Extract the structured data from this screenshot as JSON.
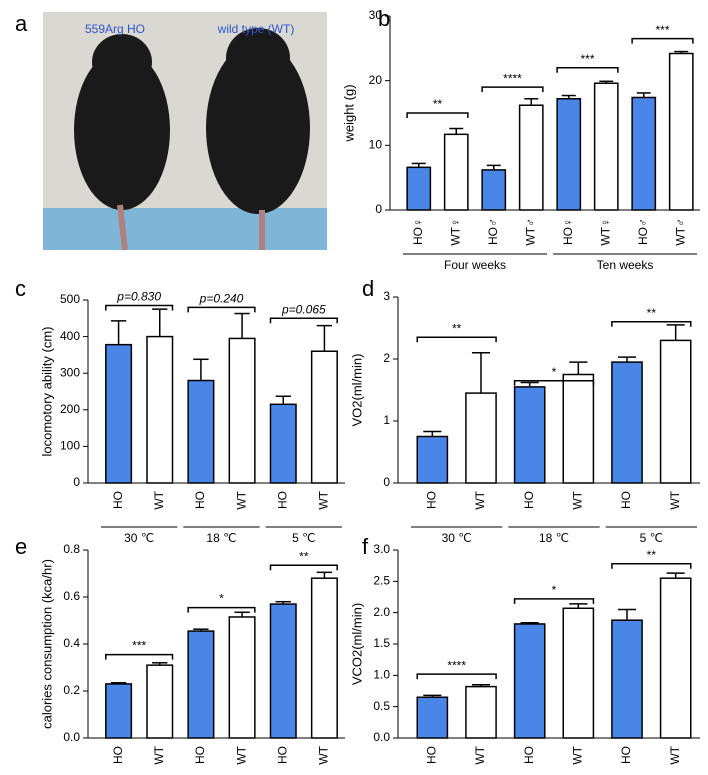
{
  "photo": {
    "panel": "a",
    "labels": [
      "559Arg HO",
      "wild type (WT)"
    ]
  },
  "chart_data": [
    {
      "type": "bar",
      "panel": "b",
      "ylabel": "weight (g)",
      "categories": [
        "HO♀",
        "WT♀",
        "HO♂",
        "WT♂",
        "HO♀",
        "WT♀",
        "HO♂",
        "WT♂"
      ],
      "values": [
        6.6,
        11.7,
        6.2,
        16.2,
        17.2,
        19.6,
        17.4,
        24.2
      ],
      "errors": [
        0.6,
        0.9,
        0.7,
        1.0,
        0.5,
        0.3,
        0.7,
        0.3
      ],
      "colors": [
        "#4a86e8",
        "#ffffff",
        "#4a86e8",
        "#ffffff",
        "#4a86e8",
        "#ffffff",
        "#4a86e8",
        "#ffffff"
      ],
      "ylim": [
        0,
        30
      ],
      "yticks": [
        0,
        10,
        20,
        30
      ],
      "annotations": [
        {
          "from": 0,
          "to": 1,
          "y": 15,
          "label": "**"
        },
        {
          "from": 2,
          "to": 3,
          "y": 19,
          "label": "****"
        },
        {
          "from": 4,
          "to": 5,
          "y": 22,
          "label": "***"
        },
        {
          "from": 6,
          "to": 7,
          "y": 26.5,
          "label": "***"
        }
      ],
      "groups": [
        {
          "label": "Four weeks",
          "from": 0,
          "to": 3
        },
        {
          "label": "Ten weeks",
          "from": 4,
          "to": 7
        }
      ]
    },
    {
      "type": "bar",
      "panel": "c",
      "ylabel": "locomotory ability (cm)",
      "categories": [
        "HO",
        "WT",
        "HO",
        "WT",
        "HO",
        "WT"
      ],
      "values": [
        378,
        400,
        280,
        395,
        215,
        360
      ],
      "errors": [
        65,
        75,
        58,
        68,
        22,
        70
      ],
      "colors": [
        "#4a86e8",
        "#ffffff",
        "#4a86e8",
        "#ffffff",
        "#4a86e8",
        "#ffffff"
      ],
      "ylim": [
        0,
        500
      ],
      "yticks": [
        0,
        100,
        200,
        300,
        400,
        500
      ],
      "annotation_style": "italic",
      "annotations": [
        {
          "from": 0,
          "to": 1,
          "y": 485,
          "label": "p=0.830"
        },
        {
          "from": 2,
          "to": 3,
          "y": 480,
          "label": "p=0.240"
        },
        {
          "from": 4,
          "to": 5,
          "y": 450,
          "label": "p=0.065"
        }
      ],
      "groups": [
        {
          "label": "30 ℃",
          "from": 0,
          "to": 1
        },
        {
          "label": "18 ℃",
          "from": 2,
          "to": 3
        },
        {
          "label": "5 ℃",
          "from": 4,
          "to": 5
        }
      ]
    },
    {
      "type": "bar",
      "panel": "d",
      "ylabel": "VO2(ml/min)",
      "categories": [
        "HO",
        "WT",
        "HO",
        "WT",
        "HO",
        "WT"
      ],
      "values": [
        0.75,
        1.45,
        1.55,
        1.75,
        1.95,
        2.3
      ],
      "errors": [
        0.08,
        0.65,
        0.07,
        0.2,
        0.08,
        0.25
      ],
      "colors": [
        "#4a86e8",
        "#ffffff",
        "#4a86e8",
        "#ffffff",
        "#4a86e8",
        "#ffffff"
      ],
      "ylim": [
        0,
        3
      ],
      "yticks": [
        0,
        1,
        2,
        3
      ],
      "annotations": [
        {
          "from": 0,
          "to": 1,
          "y": 2.35,
          "label": "**"
        },
        {
          "from": 2,
          "to": 3,
          "y": 1.65,
          "label": "*"
        },
        {
          "from": 4,
          "to": 5,
          "y": 2.6,
          "label": "**"
        }
      ],
      "groups": [
        {
          "label": "30 ℃",
          "from": 0,
          "to": 1
        },
        {
          "label": "18 ℃",
          "from": 2,
          "to": 3
        },
        {
          "label": "5 ℃",
          "from": 4,
          "to": 5
        }
      ]
    },
    {
      "type": "bar",
      "panel": "e",
      "ylabel": "calories consumption (kca/hr)",
      "categories": [
        "HO",
        "WT",
        "HO",
        "WT",
        "HO",
        "WT"
      ],
      "values": [
        0.23,
        0.31,
        0.455,
        0.515,
        0.57,
        0.68
      ],
      "errors": [
        0.005,
        0.01,
        0.008,
        0.02,
        0.01,
        0.025
      ],
      "colors": [
        "#4a86e8",
        "#ffffff",
        "#4a86e8",
        "#ffffff",
        "#4a86e8",
        "#ffffff"
      ],
      "ylim": [
        0,
        0.8
      ],
      "yticks": [
        {
          "value": 0,
          "label": "0.0"
        },
        0.2,
        0.4,
        0.6,
        0.8
      ],
      "annotations": [
        {
          "from": 0,
          "to": 1,
          "y": 0.355,
          "label": "***"
        },
        {
          "from": 2,
          "to": 3,
          "y": 0.555,
          "label": "*"
        },
        {
          "from": 4,
          "to": 5,
          "y": 0.735,
          "label": "**"
        }
      ],
      "groups": [
        {
          "label": "30 ℃",
          "from": 0,
          "to": 1
        },
        {
          "label": "18 ℃",
          "from": 2,
          "to": 3
        },
        {
          "label": "5 ℃",
          "from": 4,
          "to": 5
        }
      ]
    },
    {
      "type": "bar",
      "panel": "f",
      "ylabel": "VCO2(ml/min)",
      "categories": [
        "HO",
        "WT",
        "HO",
        "WT",
        "HO",
        "WT"
      ],
      "values": [
        0.65,
        0.82,
        1.82,
        2.07,
        1.88,
        2.55
      ],
      "errors": [
        0.03,
        0.03,
        0.02,
        0.07,
        0.17,
        0.08
      ],
      "colors": [
        "#4a86e8",
        "#ffffff",
        "#4a86e8",
        "#ffffff",
        "#4a86e8",
        "#ffffff"
      ],
      "ylim": [
        0,
        3
      ],
      "yticks": [
        {
          "value": 0,
          "label": "0.0"
        },
        0.5,
        {
          "value": 1,
          "label": "1.0"
        },
        1.5,
        {
          "value": 2,
          "label": "2.0"
        },
        2.5,
        {
          "value": 3,
          "label": "3.0"
        }
      ],
      "annotations": [
        {
          "from": 0,
          "to": 1,
          "y": 1.02,
          "label": "****"
        },
        {
          "from": 2,
          "to": 3,
          "y": 2.22,
          "label": "*"
        },
        {
          "from": 4,
          "to": 5,
          "y": 2.78,
          "label": "**"
        }
      ],
      "groups": [
        {
          "label": "30 ℃",
          "from": 0,
          "to": 1
        },
        {
          "label": "18 ℃",
          "from": 2,
          "to": 3
        },
        {
          "label": "5 ℃",
          "from": 4,
          "to": 5
        }
      ]
    }
  ]
}
